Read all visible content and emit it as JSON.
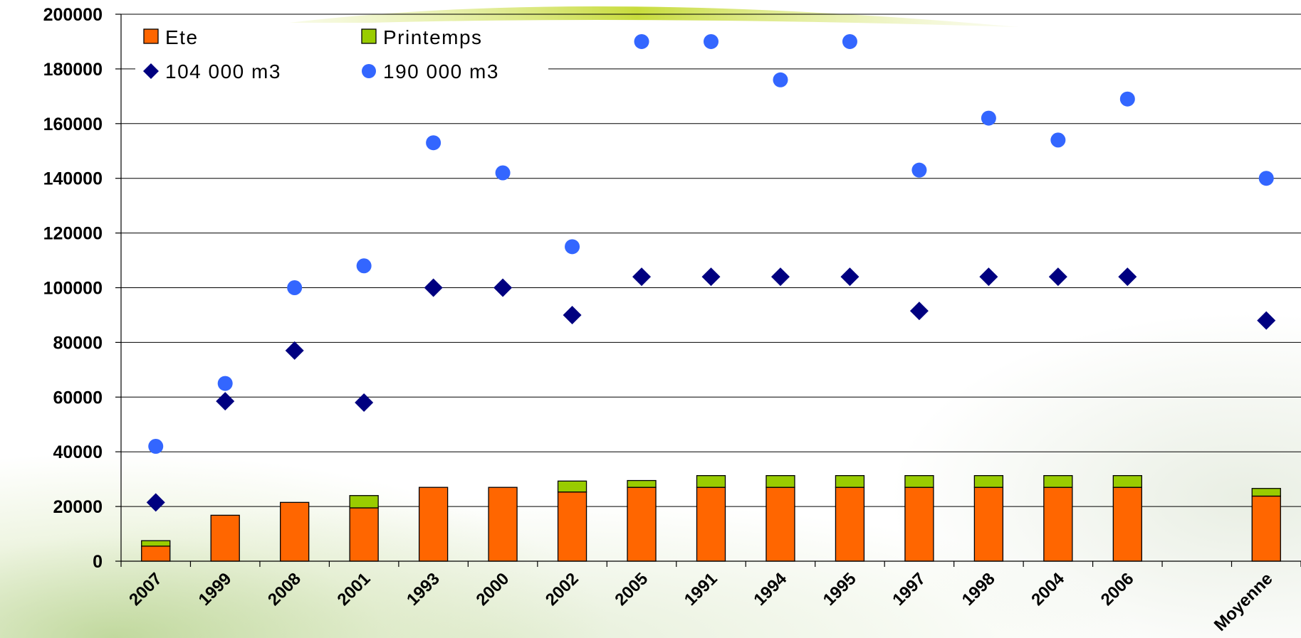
{
  "chart_data": {
    "type": "bar",
    "categories": [
      "2007",
      "1999",
      "2008",
      "2001",
      "1993",
      "2000",
      "2002",
      "2005",
      "1991",
      "1994",
      "1995",
      "1997",
      "1998",
      "2004",
      "2006",
      "",
      "Moyenne"
    ],
    "series": [
      {
        "name": "Ete",
        "kind": "bar",
        "stack": "s1",
        "color": "#ff6600",
        "values": [
          5500,
          16800,
          21500,
          19500,
          27000,
          27000,
          25300,
          27000,
          27000,
          27000,
          27000,
          27000,
          27000,
          27000,
          27000,
          null,
          23800
        ]
      },
      {
        "name": "Printemps",
        "kind": "bar",
        "stack": "s1",
        "color": "#99cc00",
        "values": [
          2000,
          0,
          0,
          4500,
          0,
          0,
          4000,
          2500,
          4300,
          4300,
          4300,
          4300,
          4300,
          4300,
          4300,
          null,
          2800
        ]
      },
      {
        "name": "104 000 m3",
        "kind": "point",
        "marker": "diamond",
        "color": "#000080",
        "values": [
          21500,
          58500,
          77000,
          58000,
          100000,
          100000,
          90000,
          104000,
          104000,
          104000,
          104000,
          91500,
          104000,
          104000,
          104000,
          null,
          88000
        ]
      },
      {
        "name": "190 000 m3",
        "kind": "point",
        "marker": "circle",
        "color": "#3366ff",
        "values": [
          42000,
          65000,
          100000,
          108000,
          153000,
          142000,
          115000,
          190000,
          190000,
          176000,
          190000,
          143000,
          162000,
          154000,
          169000,
          null,
          140000
        ]
      }
    ],
    "ylim": [
      0,
      200000
    ],
    "yticks": [
      0,
      20000,
      40000,
      60000,
      80000,
      100000,
      120000,
      140000,
      160000,
      180000,
      200000
    ],
    "title": "",
    "xlabel": "",
    "ylabel": "",
    "grid": true,
    "legend_position": "top-left"
  }
}
